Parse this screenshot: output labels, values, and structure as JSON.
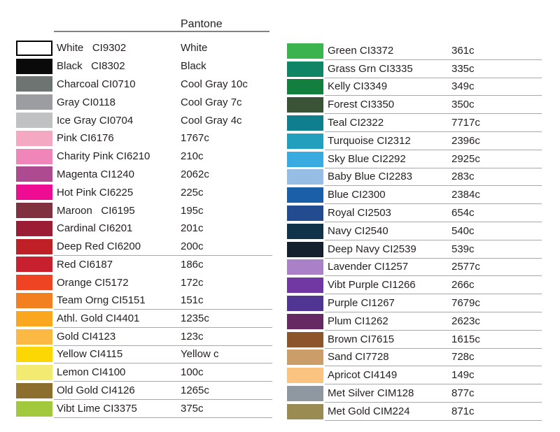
{
  "header": {
    "pantone_label": "Pantone"
  },
  "colors": {
    "background": "#ffffff",
    "text": "#231f20",
    "underline": "#a6a8ab",
    "header_line": "#808285",
    "white_swatch_border": "#000000"
  },
  "left_column": {
    "rows": [
      {
        "label": "White   CI9302",
        "pantone": "White",
        "swatch": "#ffffff",
        "bordered": true,
        "underline": false
      },
      {
        "label": "Black   CI8302",
        "pantone": "Black",
        "swatch": "#0a0a0a",
        "bordered": false,
        "underline": false
      },
      {
        "label": "Charcoal CI0710",
        "pantone": "Cool Gray 10c",
        "swatch": "#6e7472",
        "bordered": false,
        "underline": false
      },
      {
        "label": "Gray CI0118",
        "pantone": "Cool Gray 7c",
        "swatch": "#9b9da0",
        "bordered": false,
        "underline": false
      },
      {
        "label": "Ice Gray CI0704",
        "pantone": "Cool Gray 4c",
        "swatch": "#c0c1c3",
        "bordered": false,
        "underline": false
      },
      {
        "label": "Pink CI6176",
        "pantone": "1767c",
        "swatch": "#f5a8c2",
        "bordered": false,
        "underline": false
      },
      {
        "label": "Charity Pink CI6210",
        "pantone": "210c",
        "swatch": "#ef85b8",
        "bordered": false,
        "underline": false
      },
      {
        "label": "Magenta CI1240",
        "pantone": "2062c",
        "swatch": "#ae4a90",
        "bordered": false,
        "underline": false
      },
      {
        "label": "Hot Pink CI6225",
        "pantone": "225c",
        "swatch": "#ee0d92",
        "bordered": false,
        "underline": false
      },
      {
        "label": "Maroon   CI6195",
        "pantone": "195c",
        "swatch": "#81303f",
        "bordered": false,
        "underline": false
      },
      {
        "label": "Cardinal CI6201",
        "pantone": "201c",
        "swatch": "#9d1c35",
        "bordered": false,
        "underline": false
      },
      {
        "label": "Deep Red CI6200",
        "pantone": "200c",
        "swatch": "#bf2026",
        "bordered": false,
        "underline": true
      },
      {
        "label": "Red CI6187",
        "pantone": "186c",
        "swatch": "#c92030",
        "bordered": false,
        "underline": false
      },
      {
        "label": "Orange CI5172",
        "pantone": "172c",
        "swatch": "#ef4423",
        "bordered": false,
        "underline": false
      },
      {
        "label": "Team Orng CI5151",
        "pantone": "151c",
        "swatch": "#f28021",
        "bordered": false,
        "underline": true
      },
      {
        "label": "Athl. Gold CI4401",
        "pantone": "1235c",
        "swatch": "#faa61e",
        "bordered": false,
        "underline": true
      },
      {
        "label": "Gold CI4123",
        "pantone": "123c",
        "swatch": "#fbb843",
        "bordered": false,
        "underline": true
      },
      {
        "label": "Yellow CI4115",
        "pantone": "Yellow c",
        "swatch": "#fdd703",
        "bordered": false,
        "underline": true
      },
      {
        "label": "Lemon CI4100",
        "pantone": "100c",
        "swatch": "#f3ea71",
        "bordered": false,
        "underline": true
      },
      {
        "label": "Old Gold CI4126",
        "pantone": "1265c",
        "swatch": "#8c6e2e",
        "bordered": false,
        "underline": true
      },
      {
        "label": "Vibt Lime CI3375",
        "pantone": "375c",
        "swatch": "#a2c83d",
        "bordered": false,
        "underline": true
      }
    ]
  },
  "right_column": {
    "rows": [
      {
        "label": "Green CI3372",
        "pantone": "361c",
        "swatch": "#3bb34e",
        "bordered": false,
        "underline": true
      },
      {
        "label": "Grass Grn CI3335",
        "pantone": "335c",
        "swatch": "#0f8566",
        "bordered": false,
        "underline": true
      },
      {
        "label": "Kelly CI3349",
        "pantone": "349c",
        "swatch": "#127f3e",
        "bordered": false,
        "underline": true
      },
      {
        "label": "Forest CI3350",
        "pantone": "350c",
        "swatch": "#3a5336",
        "bordered": false,
        "underline": true
      },
      {
        "label": "Teal CI2322",
        "pantone": "7717c",
        "swatch": "#0f7f8e",
        "bordered": false,
        "underline": true
      },
      {
        "label": "Turquoise CI2312",
        "pantone": "2396c",
        "swatch": "#219fbd",
        "bordered": false,
        "underline": true
      },
      {
        "label": "Sky Blue CI2292",
        "pantone": "2925c",
        "swatch": "#39abe0",
        "bordered": false,
        "underline": true
      },
      {
        "label": "Baby Blue CI2283",
        "pantone": "283c",
        "swatch": "#96bee5",
        "bordered": false,
        "underline": true
      },
      {
        "label": "Blue CI2300",
        "pantone": "2384c",
        "swatch": "#1b5fa8",
        "bordered": false,
        "underline": true
      },
      {
        "label": "Royal CI2503",
        "pantone": "654c",
        "swatch": "#234c90",
        "bordered": false,
        "underline": true
      },
      {
        "label": "Navy CI2540",
        "pantone": "540c",
        "swatch": "#113349",
        "bordered": false,
        "underline": true
      },
      {
        "label": "Deep Navy CI2539",
        "pantone": "539c",
        "swatch": "#15202e",
        "bordered": false,
        "underline": true
      },
      {
        "label": "Lavender CI1257",
        "pantone": "2577c",
        "swatch": "#aa80c7",
        "bordered": false,
        "underline": true
      },
      {
        "label": "Vibt Purple CI1266",
        "pantone": "266c",
        "swatch": "#7138a3",
        "bordered": false,
        "underline": true
      },
      {
        "label": "Purple CI1267",
        "pantone": "7679c",
        "swatch": "#503692",
        "bordered": false,
        "underline": true
      },
      {
        "label": "Plum CI1262",
        "pantone": "2623c",
        "swatch": "#662a63",
        "bordered": false,
        "underline": true
      },
      {
        "label": "Brown CI7615",
        "pantone": "1615c",
        "swatch": "#8c552b",
        "bordered": false,
        "underline": true
      },
      {
        "label": "Sand CI7728",
        "pantone": "728c",
        "swatch": "#cb9d69",
        "bordered": false,
        "underline": true
      },
      {
        "label": "Apricot CI4149",
        "pantone": "149c",
        "swatch": "#fbc380",
        "bordered": false,
        "underline": true
      },
      {
        "label": "Met Silver CIM128",
        "pantone": "877c",
        "swatch": "#8f97a0",
        "bordered": false,
        "underline": true
      },
      {
        "label": "Met Gold CIM224",
        "pantone": "871c",
        "swatch": "#9a8b52",
        "bordered": false,
        "underline": true
      }
    ]
  }
}
